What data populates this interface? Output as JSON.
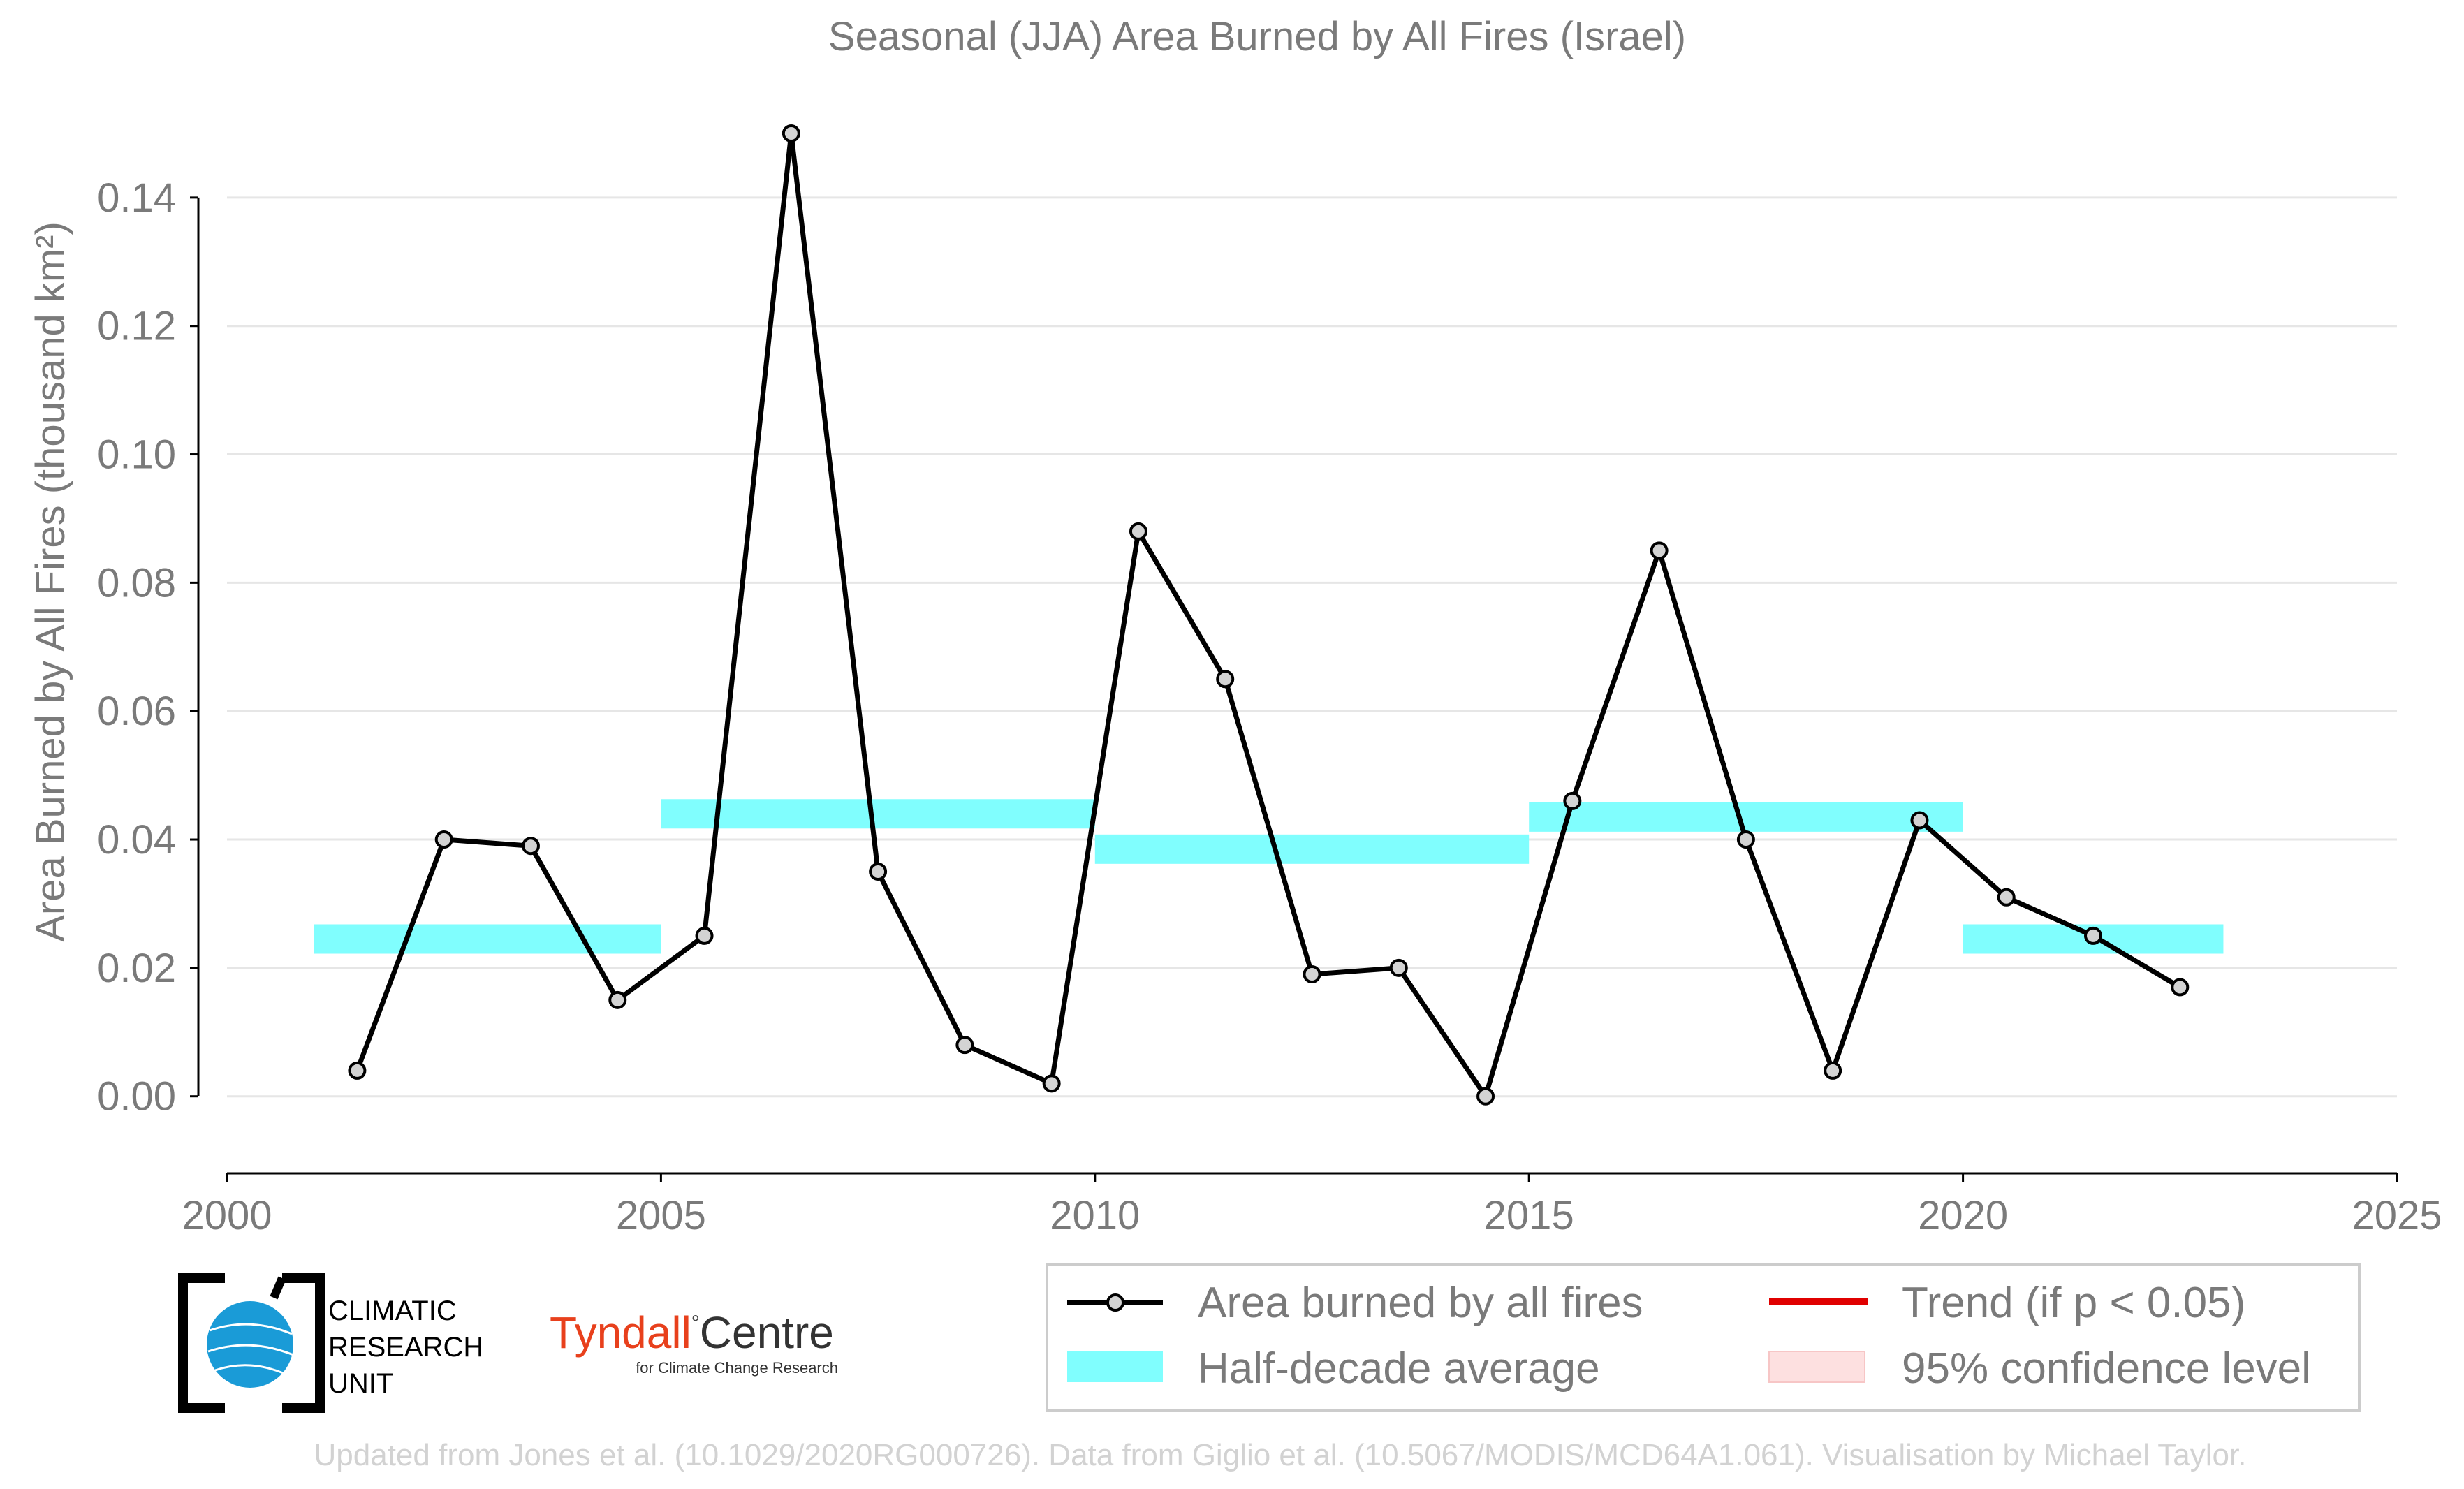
{
  "chart_data": {
    "type": "line",
    "title": "Seasonal (JJA) Area Burned by All Fires (Israel)",
    "ylabel": "Area Burned by All Fires (thousand km²)",
    "xlabel": "",
    "xlim": [
      2000,
      2025
    ],
    "ylim": [
      -0.012,
      0.155
    ],
    "x_ticks": [
      "2000",
      "2005",
      "2010",
      "2015",
      "2020",
      "2025"
    ],
    "y_ticks": [
      "0.00",
      "0.02",
      "0.04",
      "0.06",
      "0.08",
      "0.10",
      "0.12",
      "0.14"
    ],
    "grid": "horizontal",
    "series": [
      {
        "name": "Area burned by all fires",
        "color": "#000000",
        "marker_fill": "#d3d3d3",
        "x": [
          2001.5,
          2002.5,
          2003.5,
          2004.5,
          2005.5,
          2006.5,
          2007.5,
          2008.5,
          2009.5,
          2010.5,
          2011.5,
          2012.5,
          2013.5,
          2014.5,
          2015.5,
          2016.5,
          2017.5,
          2018.5,
          2019.5,
          2020.5,
          2021.5,
          2022.5
        ],
        "values": [
          0.004,
          0.04,
          0.039,
          0.015,
          0.025,
          0.15,
          0.035,
          0.008,
          0.002,
          0.088,
          0.065,
          0.019,
          0.02,
          0.0,
          0.046,
          0.085,
          0.04,
          0.004,
          0.043,
          0.031,
          0.025,
          0.017
        ]
      }
    ],
    "half_decade_averages": {
      "name": "Half-decade average",
      "color": "#80fefe",
      "segments": [
        {
          "x0": 2001,
          "x1": 2005,
          "value": 0.0245
        },
        {
          "x0": 2005,
          "x1": 2010,
          "value": 0.044
        },
        {
          "x0": 2010,
          "x1": 2015,
          "value": 0.0385
        },
        {
          "x0": 2015,
          "x1": 2020,
          "value": 0.0435
        },
        {
          "x0": 2020,
          "x1": 2023,
          "value": 0.0245
        }
      ]
    },
    "legend": {
      "placement": "bottom-right",
      "items": [
        {
          "label": "Area burned by all fires",
          "kind": "line-marker",
          "color": "#000000"
        },
        {
          "label": "Trend (if p < 0.05)",
          "kind": "line",
          "color": "#e00000"
        },
        {
          "label": "Half-decade average",
          "kind": "band",
          "color": "#80fefe"
        },
        {
          "label": "95% confidence level",
          "kind": "band",
          "color": "#fde0e0"
        }
      ]
    }
  },
  "logos": {
    "cru_lines": [
      "CLIMATIC",
      "RESEARCH",
      "UNIT"
    ],
    "tyndall_name": "Tyndall",
    "tyndall_degree": "°",
    "tyndall_centre": "Centre",
    "tyndall_sub": "for Climate Change Research"
  },
  "credit": "Updated from Jones et al. (10.1029/2020RG000726). Data from Giglio et al. (10.5067/MODIS/MCD64A1.061). Visualisation by Michael Taylor."
}
